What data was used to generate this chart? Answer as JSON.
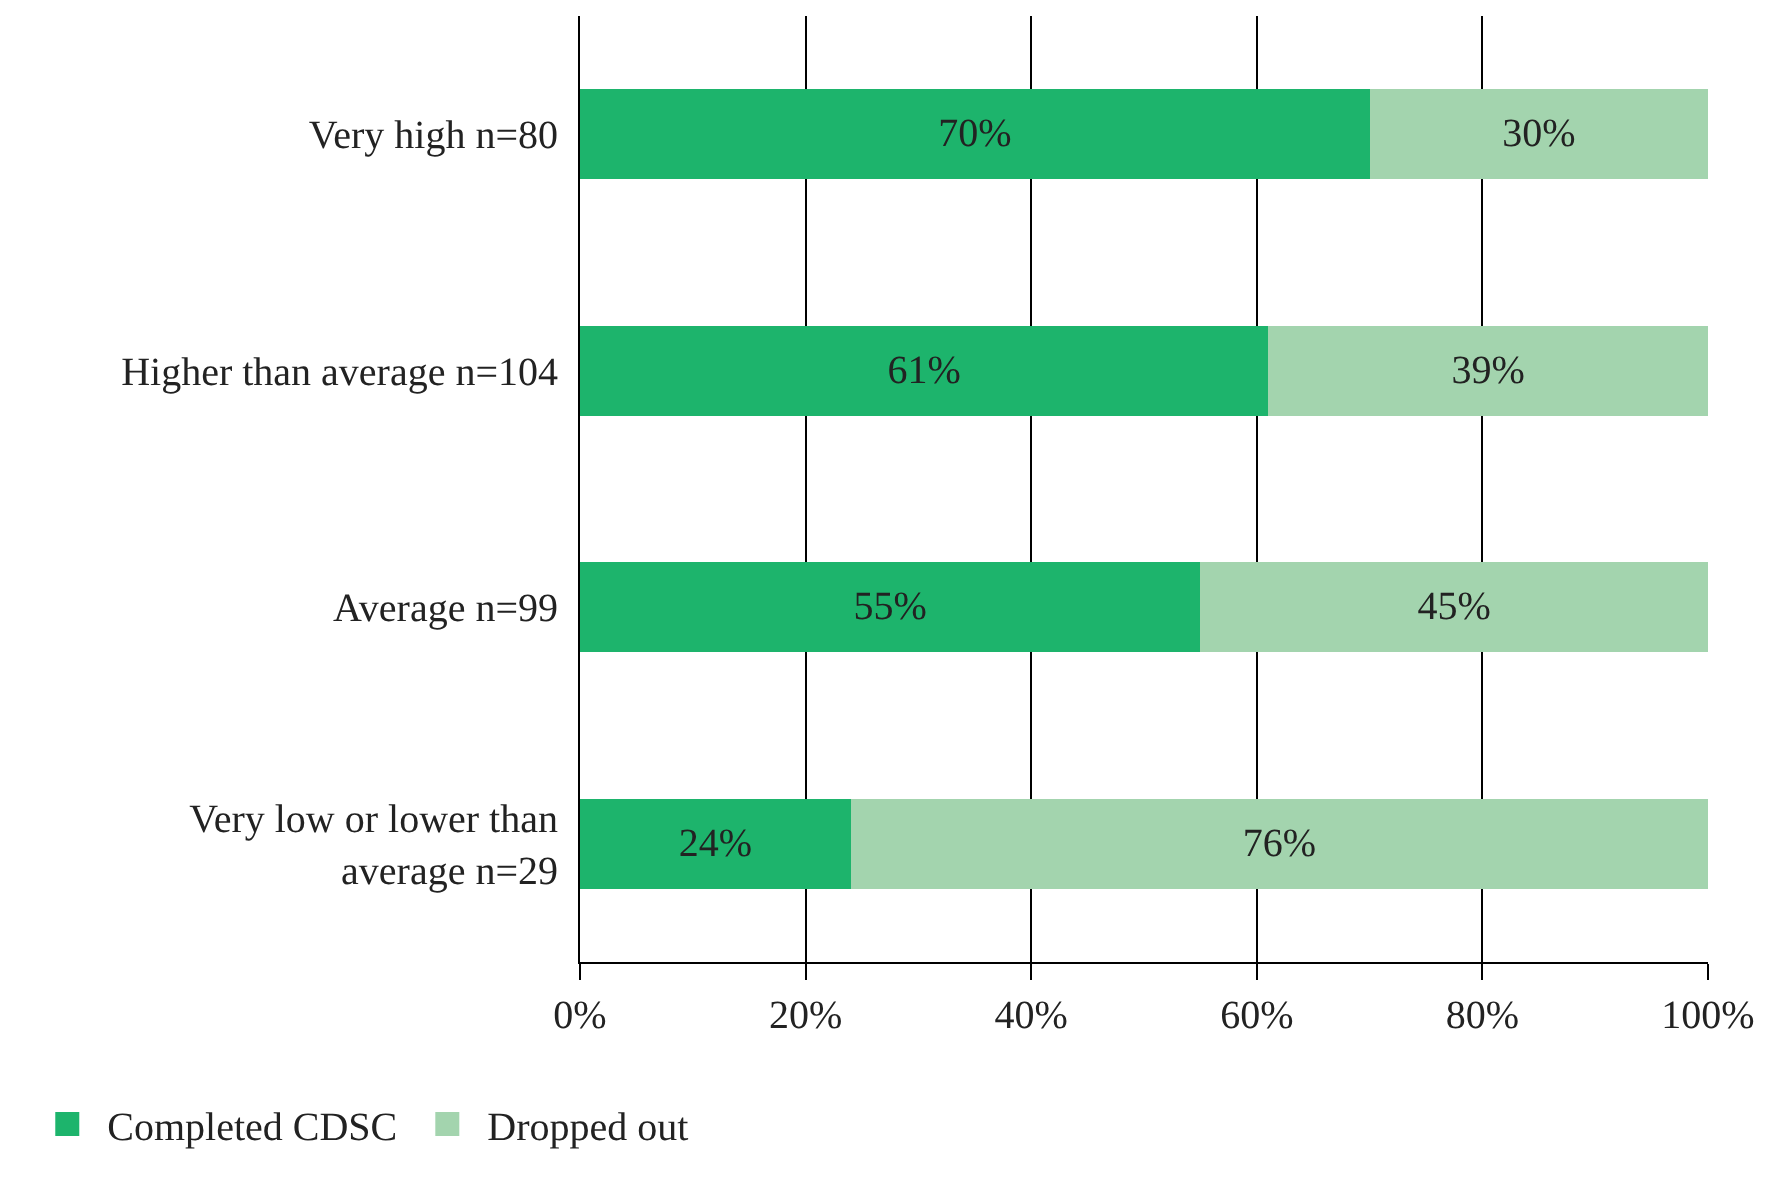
{
  "chart_data": {
    "type": "bar",
    "orientation": "horizontal",
    "stacked": true,
    "categories": [
      "Very high n=80",
      "Higher than average n=104",
      "Average n=99",
      "Very low or lower than average n=29"
    ],
    "series": [
      {
        "name": "Completed CDSC",
        "color": "#1db46c",
        "values": [
          70,
          61,
          55,
          24
        ],
        "value_labels": [
          "70%",
          "61%",
          "55%",
          "24%"
        ]
      },
      {
        "name": "Dropped out",
        "color": "#a3d4ae",
        "values": [
          30,
          39,
          45,
          76
        ],
        "value_labels": [
          "30%",
          "39%",
          "45%",
          "76%"
        ]
      }
    ],
    "xlim": [
      0,
      100
    ],
    "xticks": [
      {
        "value": 0,
        "label": "0%"
      },
      {
        "value": 20,
        "label": "20%"
      },
      {
        "value": 40,
        "label": "40%"
      },
      {
        "value": 60,
        "label": "60%"
      },
      {
        "value": 80,
        "label": "80%"
      },
      {
        "value": 100,
        "label": "100%"
      }
    ],
    "grid": "x",
    "legend": "bottom left"
  }
}
